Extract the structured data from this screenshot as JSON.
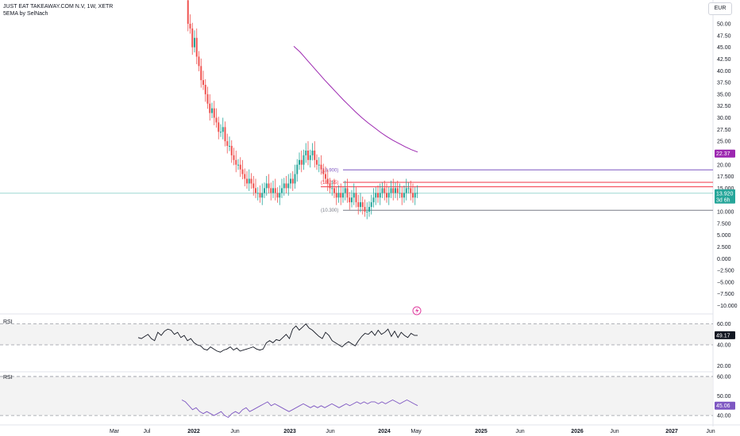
{
  "header": {
    "symbol_line": "JUST EAT TAKEAWAY.COM N.V, 1W, XETR",
    "indicator_line": "5EMA by SelNach"
  },
  "currency": "EUR",
  "chart_data": [
    {
      "type": "candlestick",
      "panel": "price",
      "price_axis_ticks": [
        "50.00",
        "47.50",
        "45.00",
        "42.50",
        "40.00",
        "37.50",
        "35.00",
        "32.50",
        "30.00",
        "27.50",
        "25.00",
        "20.00",
        "17.500",
        "15.000",
        "12.500",
        "10.000",
        "7.500",
        "5.000",
        "2.500",
        "0.000",
        "−2.500",
        "−5.000",
        "−7.500",
        "−10.000"
      ],
      "ylim": [
        -11,
        55
      ],
      "x_tick_labels": [
        "Mar",
        "Jul",
        "2022",
        "Jun",
        "2023",
        "Jun",
        "2024",
        "May",
        "2025",
        "Jun",
        "2026",
        "Jun",
        "2027",
        "Jun"
      ],
      "close_series": [
        55,
        50,
        49,
        45,
        47,
        43,
        41,
        38,
        37,
        35,
        33,
        31,
        32,
        30,
        29,
        27,
        27,
        28,
        25,
        24,
        24,
        22,
        21,
        20,
        20,
        19,
        18,
        17,
        16,
        17,
        16,
        15,
        14,
        14,
        13,
        14,
        15,
        16,
        15,
        14,
        15,
        14,
        13,
        14,
        15,
        16,
        15,
        16,
        17,
        16,
        18,
        20,
        21,
        20,
        22,
        23,
        21,
        22,
        23,
        21,
        20,
        20,
        19,
        18,
        17,
        16,
        15,
        15,
        14,
        13,
        14,
        13,
        14,
        15,
        13,
        12,
        13,
        14,
        12,
        11,
        12,
        11,
        10,
        10,
        11,
        12,
        13,
        14,
        13,
        14,
        15,
        14,
        13,
        14,
        15,
        14,
        15,
        14,
        14,
        13,
        14,
        15,
        15,
        14,
        13,
        14,
        14
      ],
      "ema_series": [
        45.2,
        44,
        42.5,
        41,
        39.5,
        38,
        36.6,
        35.2,
        33.8,
        32.5,
        31.2,
        30,
        28.9,
        27.9,
        26.9,
        26,
        25.2,
        24.5,
        23.8,
        23.2,
        22.7
      ],
      "price_lines": [
        {
          "label": "(18.900)",
          "value": 18.9,
          "color": "#7e57c2"
        },
        {
          "label": "(16.255)",
          "value": 16.255,
          "color": "#f23645"
        },
        {
          "label": "",
          "value": 15.3,
          "color": "#f23645"
        },
        {
          "label": "(10.300)",
          "value": 10.3,
          "color": "#787b86"
        }
      ],
      "last_price": {
        "value": "13.920",
        "countdown": "3d 6h",
        "color": "#26a69a"
      },
      "ema_last": {
        "value": "22.37",
        "color": "#9c27b0"
      }
    },
    {
      "type": "line",
      "panel": "RSI",
      "title": "RSI",
      "ticks": [
        "60.00",
        "40.00",
        "20.00"
      ],
      "band": [
        40,
        60
      ],
      "ylim": [
        15,
        65
      ],
      "values": [
        47,
        46,
        48,
        50,
        46,
        44,
        52,
        49,
        53,
        55,
        54,
        50,
        52,
        47,
        49,
        44,
        46,
        42,
        40,
        39,
        36,
        35,
        38,
        36,
        34,
        33,
        35,
        36,
        38,
        35,
        37,
        34,
        35,
        36,
        37,
        38,
        36,
        35,
        36,
        42,
        44,
        42,
        45,
        44,
        47,
        50,
        46,
        55,
        58,
        54,
        57,
        60,
        56,
        54,
        51,
        48,
        46,
        52,
        49,
        44,
        42,
        40,
        38,
        41,
        43,
        41,
        39,
        44,
        48,
        51,
        50,
        53,
        49,
        54,
        50,
        52,
        55,
        48,
        53,
        47,
        52,
        49,
        47,
        51,
        49,
        49
      ],
      "last_value": "49.17"
    },
    {
      "type": "line",
      "panel": "RSI",
      "title": "RSI",
      "ticks": [
        "60.00",
        "50.00",
        "40.00"
      ],
      "band": [
        40,
        60
      ],
      "ylim": [
        36,
        62
      ],
      "values": [
        48,
        47,
        45,
        43,
        44,
        42,
        41,
        42,
        41,
        40,
        41,
        42,
        40,
        39,
        41,
        42,
        41,
        43,
        44,
        42,
        43,
        44,
        45,
        46,
        47,
        45,
        46,
        45,
        44,
        43,
        42,
        43,
        44,
        45,
        46,
        45,
        44,
        45,
        44,
        45,
        44,
        45,
        46,
        45,
        44,
        45,
        46,
        45,
        46,
        47,
        46,
        47,
        46,
        47,
        47,
        46,
        47,
        46,
        47,
        48,
        47,
        46,
        47,
        48,
        47,
        46,
        45.06
      ],
      "last_value": "45.06"
    }
  ]
}
